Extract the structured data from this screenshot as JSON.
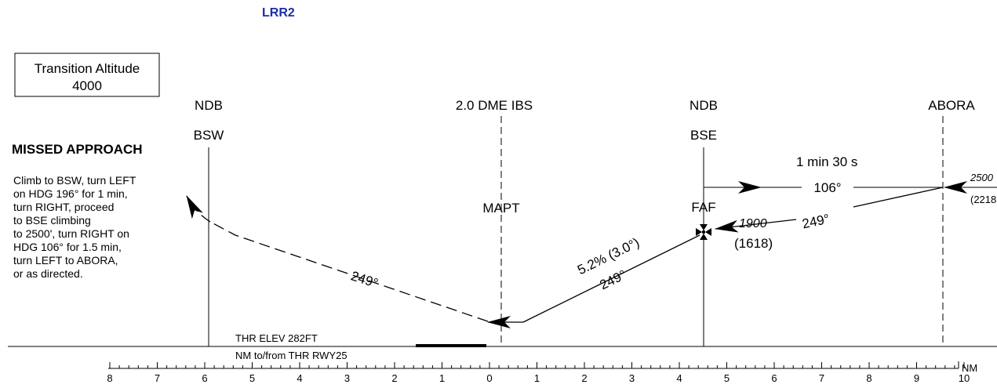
{
  "chart_id": "LRR2",
  "transition_altitude": {
    "line1": "Transition Altitude",
    "line2": "4000"
  },
  "missed_approach": {
    "title": "MISSED APPROACH",
    "lines": [
      "Climb to BSW, turn LEFT",
      "on HDG 196° for 1 min,",
      "turn RIGHT, proceed",
      "to BSE climbing",
      "to 2500', turn RIGHT on",
      "HDG 106° for 1.5 min,",
      "turn LEFT to ABORA,",
      "or as directed."
    ]
  },
  "fixes": {
    "bsw_type": "NDB",
    "bsw_name": "BSW",
    "dme": "2.0 DME IBS",
    "mapt": "MAPT",
    "bse_type": "NDB",
    "bse_name": "BSE",
    "faf": "FAF",
    "abora": "ABORA"
  },
  "labels": {
    "hold_time": "1 min 30 s",
    "outbound_course": "106°",
    "inbound_course_upper": "249°",
    "gradient": "5.2% (3.0°)",
    "final_course": "249°",
    "missed_course": "249°",
    "faf_alt": "1900",
    "faf_height": "(1618)",
    "abora_alt": "2500",
    "abora_height": "(2218",
    "thr_elev": "THR ELEV 282FT",
    "nm_ref": "NM to/from THR RWY25",
    "nm_unit": "NM"
  },
  "scale": {
    "ticks": [
      "8",
      "7",
      "6",
      "5",
      "4",
      "3",
      "2",
      "1",
      "0",
      "1",
      "2",
      "3",
      "4",
      "5",
      "6",
      "7",
      "8",
      "9",
      "10"
    ]
  },
  "colors": {
    "chart_id": "#1d2ea8"
  }
}
